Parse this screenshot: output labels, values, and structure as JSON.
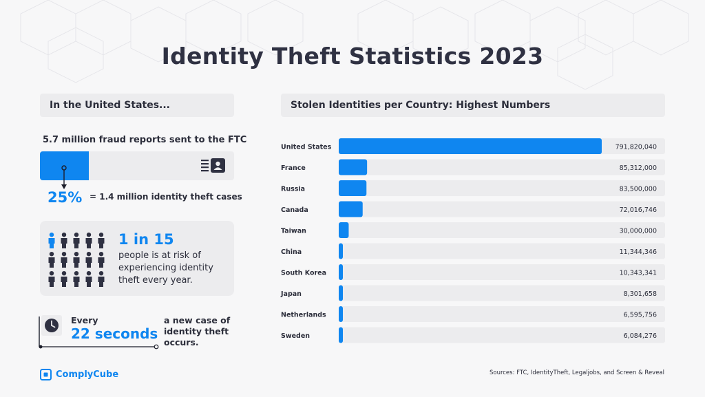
{
  "title": "Identity Theft Statistics 2023",
  "colors": {
    "accent": "#0f86f0",
    "text": "#2b2d3a",
    "panel": "#ececee",
    "background": "#f7f7f8"
  },
  "left_panel": {
    "header": "In the United States...",
    "fraud_reports_label": "5.7 million fraud reports sent to the FTC",
    "fraud_share_fraction": 0.25,
    "report_icon": "id-card-icon",
    "percent": "25%",
    "percent_text": "= 1.4 million identity theft cases",
    "people_icon": "person-icon",
    "people_total": 15,
    "people_highlighted": 1,
    "risk_ratio": "1 in 15",
    "risk_text": "people is at risk of experiencing identity theft every year.",
    "clock_icon": "clock-icon",
    "every_label": "Every",
    "seconds_label": "22 seconds",
    "new_case_text": "a new case of identity theft occurs."
  },
  "right_panel": {
    "header": "Stolen Identities per Country: Highest Numbers"
  },
  "chart_data": {
    "type": "bar",
    "orientation": "horizontal",
    "title": "Stolen Identities per Country: Highest Numbers",
    "categories": [
      "United States",
      "France",
      "Russia",
      "Canada",
      "Taiwan",
      "China",
      "South Korea",
      "Japan",
      "Netherlands",
      "Sweden"
    ],
    "values": [
      791820040,
      85312000,
      83500000,
      72016746,
      30000000,
      11344346,
      10343341,
      8301658,
      6595756,
      6084276
    ],
    "value_labels": [
      "791,820,040",
      "85,312,000",
      "83,500,000",
      "72,016,746",
      "30,000,000",
      "11,344,346",
      "10,343,341",
      "8,301,658",
      "6,595,756",
      "6,084,276"
    ],
    "xlim": [
      0,
      791820040
    ],
    "grid": false,
    "legend": "none"
  },
  "footer": {
    "brand": "ComplyCube",
    "logo_icon": "complycube-logo-icon",
    "sources": "Sources: FTC, IdentityTheft, Legaljobs, and Screen & Reveal"
  }
}
